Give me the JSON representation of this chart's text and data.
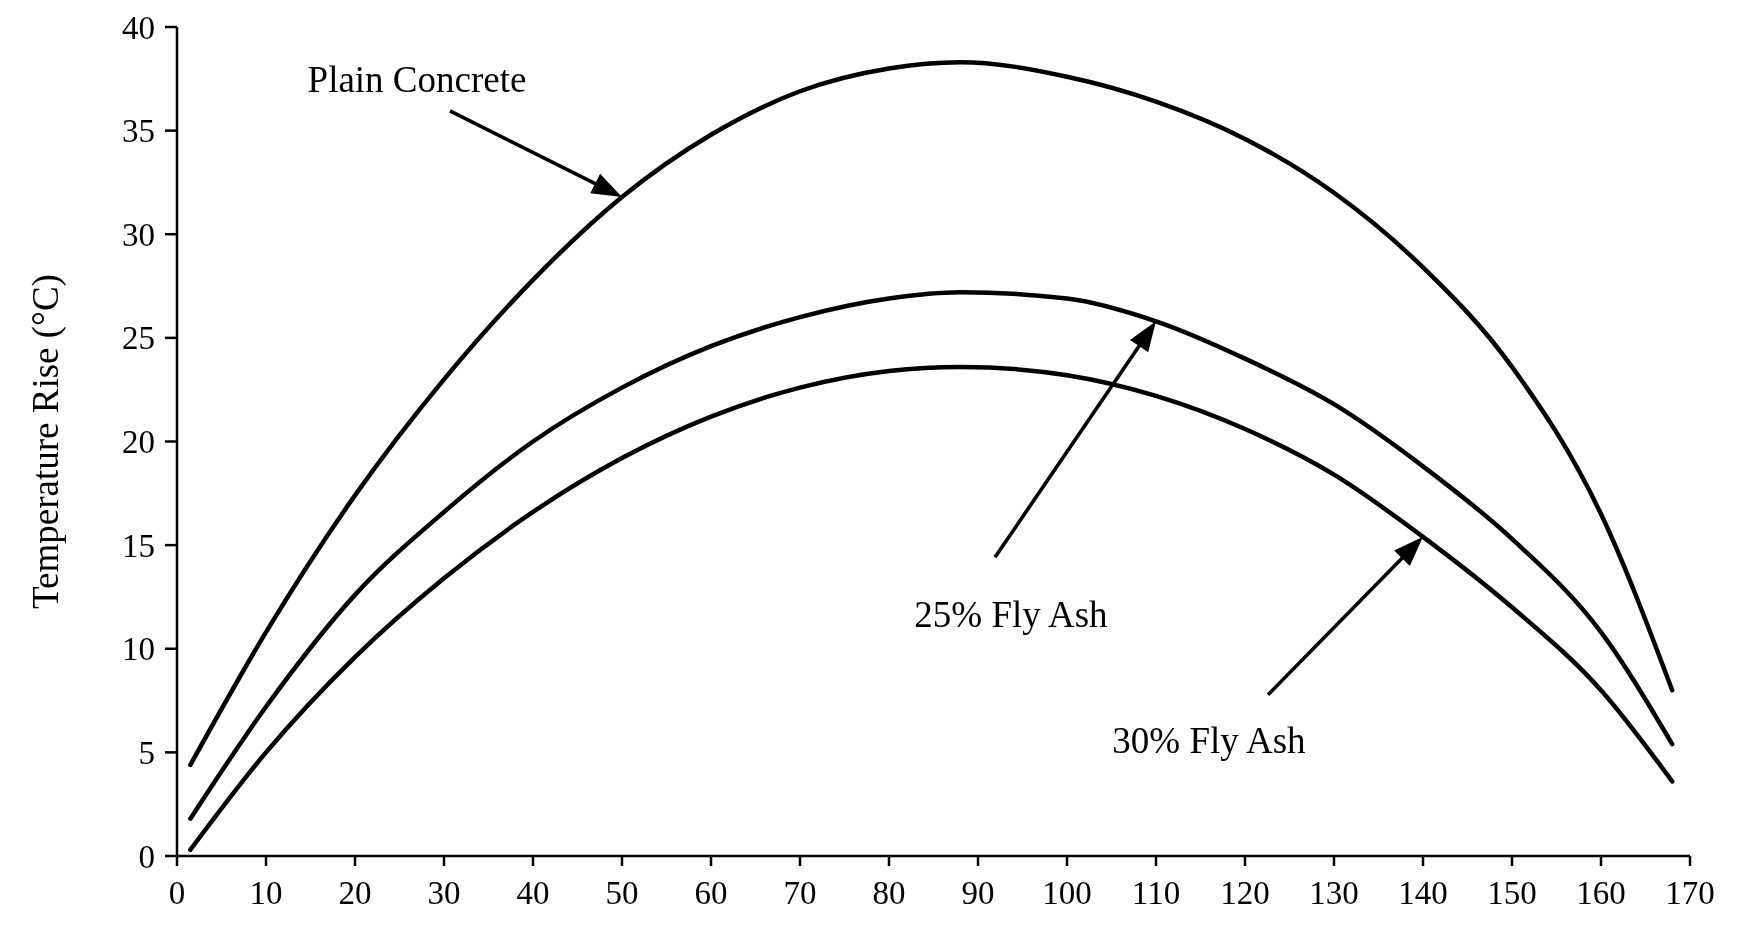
{
  "chart_data": {
    "type": "line",
    "ylabel": "Temperature Rise (°C)",
    "xlim": [
      0,
      170
    ],
    "ylim": [
      0,
      40
    ],
    "xticks": [
      0,
      10,
      20,
      30,
      40,
      50,
      60,
      70,
      80,
      90,
      100,
      110,
      120,
      130,
      140,
      150,
      160,
      170
    ],
    "yticks": [
      0,
      5,
      10,
      15,
      20,
      25,
      30,
      35,
      40
    ],
    "grid": false,
    "marker": "none",
    "line_style": "solid",
    "series": [
      {
        "color": "#000000",
        "x": [
          1.5,
          10,
          20,
          30,
          40,
          50,
          60,
          70,
          80,
          88,
          100,
          110,
          120,
          130,
          140,
          150,
          160,
          168
        ],
        "values": [
          4.4,
          10.8,
          17.4,
          23,
          27.8,
          31.8,
          34.8,
          36.9,
          38,
          38.3,
          37.6,
          36.4,
          34.6,
          32,
          28.4,
          23.6,
          16.5,
          8
        ]
      },
      {
        "color": "#000000",
        "x": [
          1.5,
          10,
          20,
          30,
          40,
          50,
          60,
          70,
          80,
          88,
          100,
          110,
          120,
          130,
          140,
          150,
          160,
          168
        ],
        "values": [
          1.8,
          7.2,
          12.6,
          16.6,
          20,
          22.6,
          24.6,
          26,
          26.9,
          27.2,
          26.9,
          25.8,
          24,
          21.8,
          18.8,
          15.3,
          10.8,
          5.4
        ]
      },
      {
        "color": "#000000",
        "x": [
          1.5,
          10,
          20,
          30,
          40,
          50,
          60,
          70,
          80,
          88,
          100,
          110,
          120,
          130,
          140,
          150,
          160,
          168
        ],
        "values": [
          0.3,
          5,
          9.6,
          13.4,
          16.6,
          19.2,
          21.2,
          22.6,
          23.4,
          23.6,
          23.2,
          22.2,
          20.6,
          18.4,
          15.4,
          12,
          8,
          3.6
        ]
      }
    ],
    "annotations": [
      "Plain Concrete",
      "25% Fly Ash",
      "30% Fly Ash"
    ]
  }
}
